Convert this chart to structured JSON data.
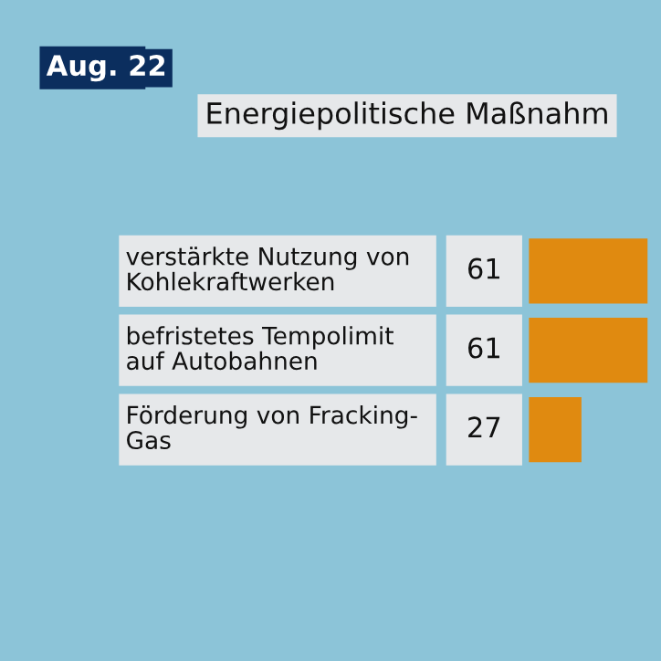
{
  "chart_data": {
    "type": "bar",
    "orientation": "horizontal",
    "title": "Aug. 22",
    "subtitle": "Energiepolitische Maßnahm",
    "categories": [
      "verstärkte Nutzung von\nKohlekraftwerken",
      "befristetes Tempolimit\nauf Autobahnen",
      "Förderung von Fracking-\nGas"
    ],
    "values": [
      61,
      61,
      27
    ],
    "color": "#e08a10",
    "data_labels": true
  }
}
